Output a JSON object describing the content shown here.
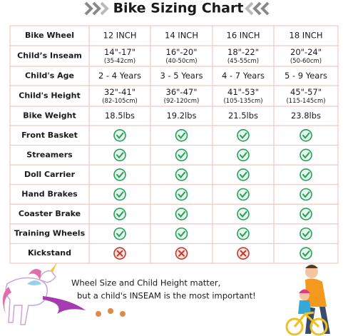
{
  "header": {
    "title": "Bike Sizing Chart"
  },
  "table": {
    "columns": [
      "Bike Wheel",
      "12 INCH",
      "14 INCH",
      "16 INCH",
      "18 INCH"
    ],
    "rows": [
      {
        "label": "Child’s Inseam",
        "cells": [
          [
            "14\"-17\"",
            "(35-42cm)"
          ],
          [
            "16\"-20\"",
            "(40-50cm)"
          ],
          [
            "18\"-22\"",
            "(45-55cm)"
          ],
          [
            "20\"-24\"",
            "(50-60cm)"
          ]
        ]
      },
      {
        "label": "Child's Age",
        "cells": [
          [
            "2 - 4 Years"
          ],
          [
            "3 - 5 Years"
          ],
          [
            "4 - 7 Years"
          ],
          [
            "5 - 9 Years"
          ]
        ]
      },
      {
        "label": "Child's Height",
        "cells": [
          [
            "32\"-41\"",
            "(82-105cm)"
          ],
          [
            "36\"-47\"",
            "(92-120cm)"
          ],
          [
            "41\"-53\"",
            "(105-135cm)"
          ],
          [
            "45\"-57\"",
            "(115-145cm)"
          ]
        ]
      },
      {
        "label": "Bike Weight",
        "cells": [
          [
            "18.5lbs"
          ],
          [
            "19.2lbs"
          ],
          [
            "21.5lbs"
          ],
          [
            "23.8lbs"
          ]
        ]
      }
    ],
    "features": [
      {
        "label": "Front Basket",
        "included": [
          true,
          true,
          true,
          true
        ]
      },
      {
        "label": "Streamers",
        "included": [
          true,
          true,
          true,
          true
        ]
      },
      {
        "label": "Doll Carrier",
        "included": [
          true,
          true,
          true,
          true
        ]
      },
      {
        "label": "Hand Brakes",
        "included": [
          true,
          true,
          true,
          true
        ]
      },
      {
        "label": "Coaster Brake",
        "included": [
          true,
          true,
          true,
          true
        ]
      },
      {
        "label": "Training Wheels",
        "included": [
          true,
          true,
          true,
          true
        ]
      },
      {
        "label": "Kickstand",
        "included": [
          false,
          false,
          false,
          true
        ]
      }
    ]
  },
  "note": [
    "Wheel Size and Child Height matter,",
    "but a child's INSEAM is the most important!"
  ]
}
